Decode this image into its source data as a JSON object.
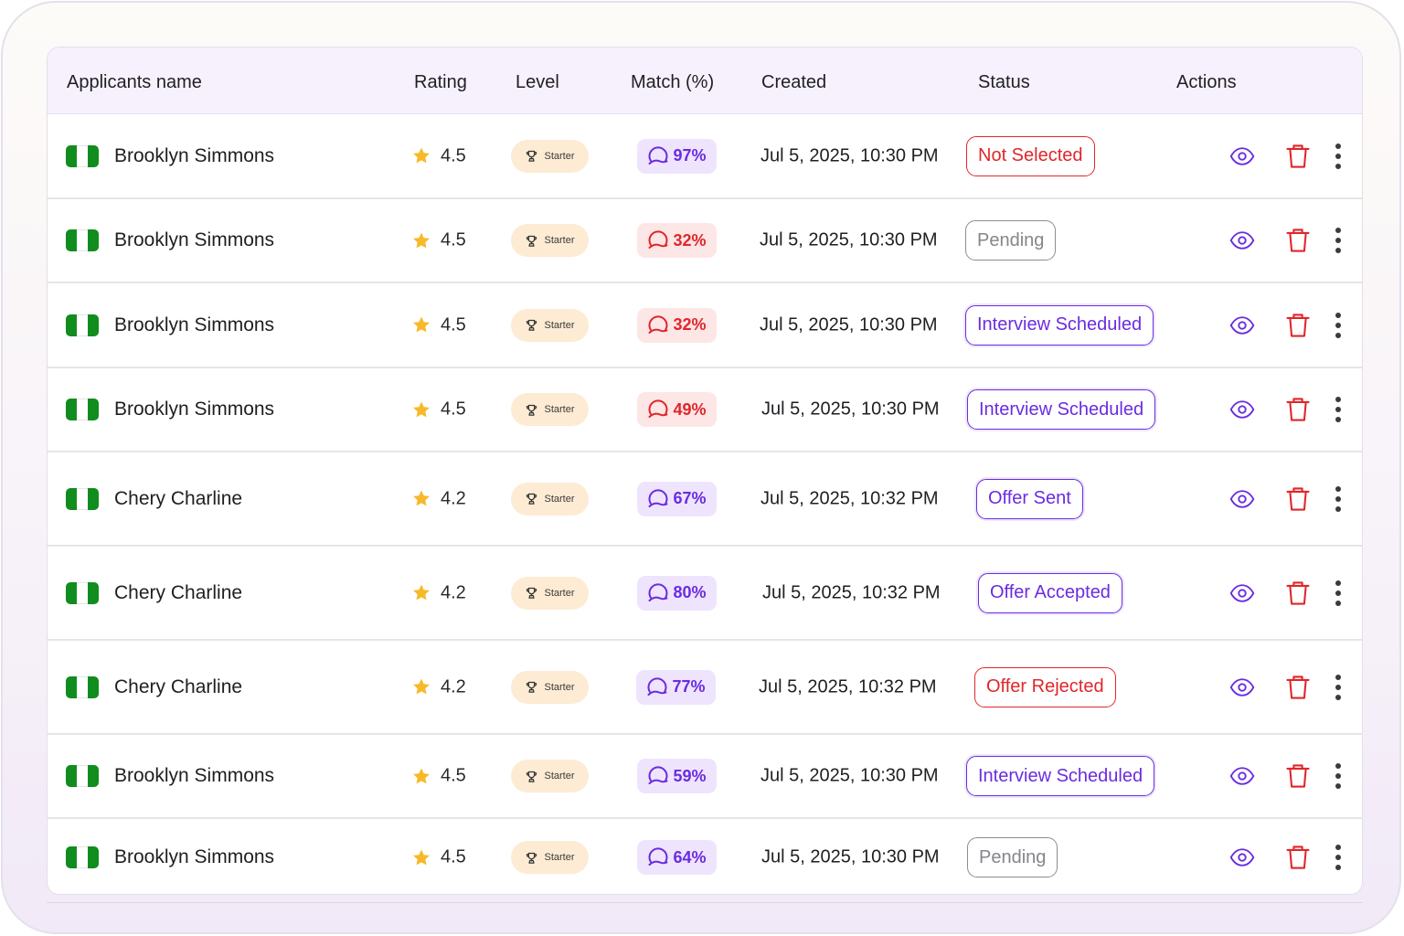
{
  "columns": {
    "name": "Applicants name",
    "rating": "Rating",
    "level": "Level",
    "match": "Match (%)",
    "created": "Created",
    "status": "Status",
    "actions": "Actions"
  },
  "icons": {
    "flag": "nigeria-flag-icon",
    "rating": "star-icon",
    "level": "trophy-icon",
    "match": "match-gauge-icon",
    "view": "eye-icon",
    "delete": "trash-icon",
    "more": "more-vertical-icon"
  },
  "colors": {
    "accent_purple": "#6a2ce0",
    "danger_red": "#e0262a",
    "neutral_gray": "#85858c",
    "star_yellow": "#f7b928",
    "flag_green": "#118c1e",
    "level_badge_bg": "#fdebd3",
    "header_bg": "#f6f1fc"
  },
  "rows": [
    {
      "name": "Brooklyn Simmons",
      "rating": "4.5",
      "level": "Starter",
      "match": "97%",
      "match_tone": "purple",
      "created": "Jul 5, 2025, 10:30 PM",
      "status": "Not Selected",
      "status_tone": "red"
    },
    {
      "name": "Brooklyn Simmons",
      "rating": "4.5",
      "level": "Starter",
      "match": "32%",
      "match_tone": "red",
      "created": "Jul 5, 2025, 10:30 PM",
      "status": "Pending",
      "status_tone": "gray"
    },
    {
      "name": "Brooklyn Simmons",
      "rating": "4.5",
      "level": "Starter",
      "match": "32%",
      "match_tone": "red",
      "created": "Jul 5, 2025, 10:30 PM",
      "status": "Interview Scheduled",
      "status_tone": "purple"
    },
    {
      "name": "Brooklyn Simmons",
      "rating": "4.5",
      "level": "Starter",
      "match": "49%",
      "match_tone": "red",
      "created": "Jul 5, 2025, 10:30 PM",
      "status": "Interview Scheduled",
      "status_tone": "purple"
    },
    {
      "name": "Chery Charline",
      "rating": "4.2",
      "level": "Starter",
      "match": "67%",
      "match_tone": "purple",
      "created": "Jul 5, 2025, 10:32 PM",
      "status": "Offer Sent",
      "status_tone": "purple"
    },
    {
      "name": "Chery Charline",
      "rating": "4.2",
      "level": "Starter",
      "match": "80%",
      "match_tone": "purple",
      "created": "Jul 5, 2025, 10:32 PM",
      "status": "Offer Accepted",
      "status_tone": "purple"
    },
    {
      "name": "Chery Charline",
      "rating": "4.2",
      "level": "Starter",
      "match": "77%",
      "match_tone": "purple",
      "created": "Jul 5, 2025, 10:32 PM",
      "status": "Offer Rejected",
      "status_tone": "red"
    },
    {
      "name": "Brooklyn Simmons",
      "rating": "4.5",
      "level": "Starter",
      "match": "59%",
      "match_tone": "purple",
      "created": "Jul 5, 2025, 10:30 PM",
      "status": "Interview Scheduled",
      "status_tone": "purple"
    },
    {
      "name": "Brooklyn Simmons",
      "rating": "4.5",
      "level": "Starter",
      "match": "64%",
      "match_tone": "purple",
      "created": "Jul 5, 2025, 10:30 PM",
      "status": "Pending",
      "status_tone": "gray"
    }
  ]
}
